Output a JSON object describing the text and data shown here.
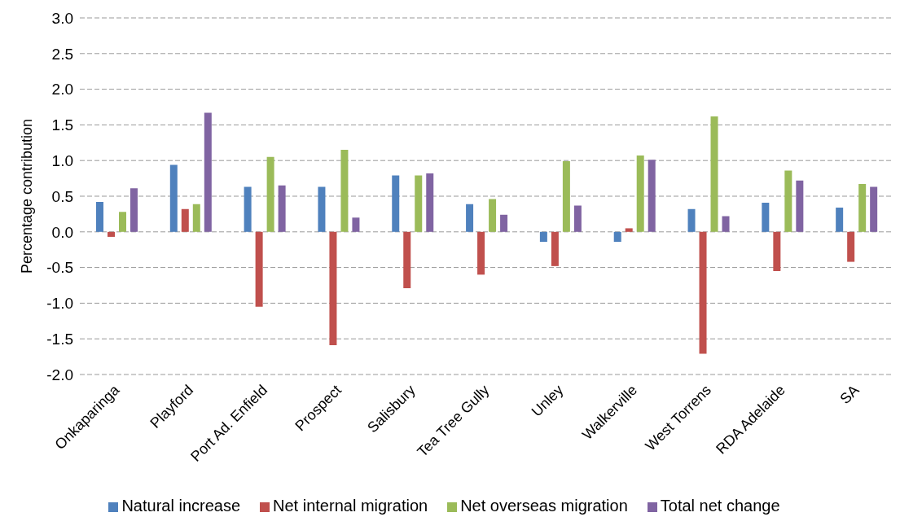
{
  "chart_data": {
    "type": "bar",
    "ylabel": "Percentage contribution",
    "categories": [
      "Onkaparinga",
      "Playford",
      "Port Ad. Enfield",
      "Prospect",
      "Salisbury",
      "Tea Tree Gully",
      "Unley",
      "Walkerville",
      "West Torrens",
      "RDA Adelaide",
      "SA"
    ],
    "series": [
      {
        "name": "Natural increase",
        "color": "#4f81bd",
        "values": [
          0.42,
          0.94,
          0.63,
          0.63,
          0.79,
          0.39,
          -0.14,
          -0.14,
          0.32,
          0.41,
          0.34
        ]
      },
      {
        "name": "Net internal migration",
        "color": "#c0504d",
        "values": [
          -0.07,
          0.32,
          -1.05,
          -1.59,
          -0.79,
          -0.6,
          -0.48,
          0.05,
          -1.71,
          -0.55,
          -0.42
        ]
      },
      {
        "name": "Net overseas migration",
        "color": "#9bbb59",
        "values": [
          0.28,
          0.39,
          1.05,
          1.15,
          0.79,
          0.46,
          0.99,
          1.07,
          1.62,
          0.86,
          0.67
        ]
      },
      {
        "name": "Total net change",
        "color": "#8064a2",
        "values": [
          0.61,
          1.67,
          0.65,
          0.2,
          0.82,
          0.24,
          0.37,
          1.01,
          0.22,
          0.72,
          0.63
        ]
      }
    ],
    "ylim": [
      -2,
      3
    ],
    "yticks": [
      {
        "value": -2,
        "label": "-2.0"
      },
      {
        "value": -1.5,
        "label": "-1.5"
      },
      {
        "value": -1,
        "label": "-1.0"
      },
      {
        "value": -0.5,
        "label": "-0.5"
      },
      {
        "value": 0,
        "label": "0.0"
      },
      {
        "value": 0.5,
        "label": "0.5"
      },
      {
        "value": 1,
        "label": "1.0"
      },
      {
        "value": 1.5,
        "label": "1.5"
      },
      {
        "value": 2,
        "label": "2.0"
      },
      {
        "value": 2.5,
        "label": "2.5"
      },
      {
        "value": 3,
        "label": "3.0"
      }
    ],
    "grid": "y",
    "legend": "bottom"
  }
}
